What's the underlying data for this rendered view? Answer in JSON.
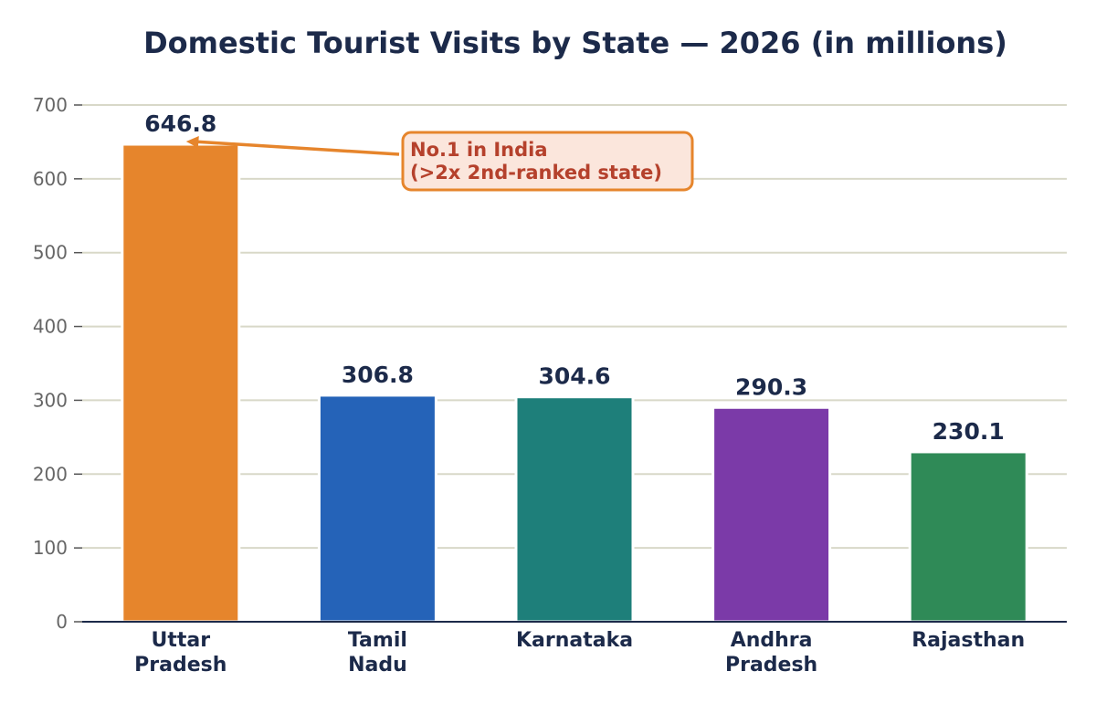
{
  "chart_data": {
    "type": "bar",
    "title": "Domestic Tourist Visits by State — 2026 (in millions)",
    "xlabel": "",
    "ylabel": "",
    "categories": [
      [
        "Uttar",
        "Pradesh"
      ],
      [
        "Tamil",
        "Nadu"
      ],
      [
        "Karnataka"
      ],
      [
        "Andhra",
        "Pradesh"
      ],
      [
        "Rajasthan"
      ]
    ],
    "values": [
      646.8,
      306.8,
      304.6,
      290.3,
      230.1
    ],
    "data_labels": [
      "646.8",
      "306.8",
      "304.6",
      "290.3",
      "230.1"
    ],
    "colors": [
      "#e6852c",
      "#2563b8",
      "#1e7f7a",
      "#7b3aa8",
      "#2f8a57"
    ],
    "ylim": [
      0,
      700
    ],
    "yticks": [
      0,
      100,
      200,
      300,
      400,
      500,
      600,
      700
    ],
    "grid": true,
    "grid_color": "#d8d8c8",
    "annotation": {
      "lines": [
        "No.1 in India",
        "(>2x 2nd-ranked state)"
      ],
      "target_category_index": 0,
      "text_color": "#b5412c",
      "box_fill": "#fbe6dc",
      "box_border": "#e6852c",
      "arrow_color": "#e6852c"
    }
  }
}
